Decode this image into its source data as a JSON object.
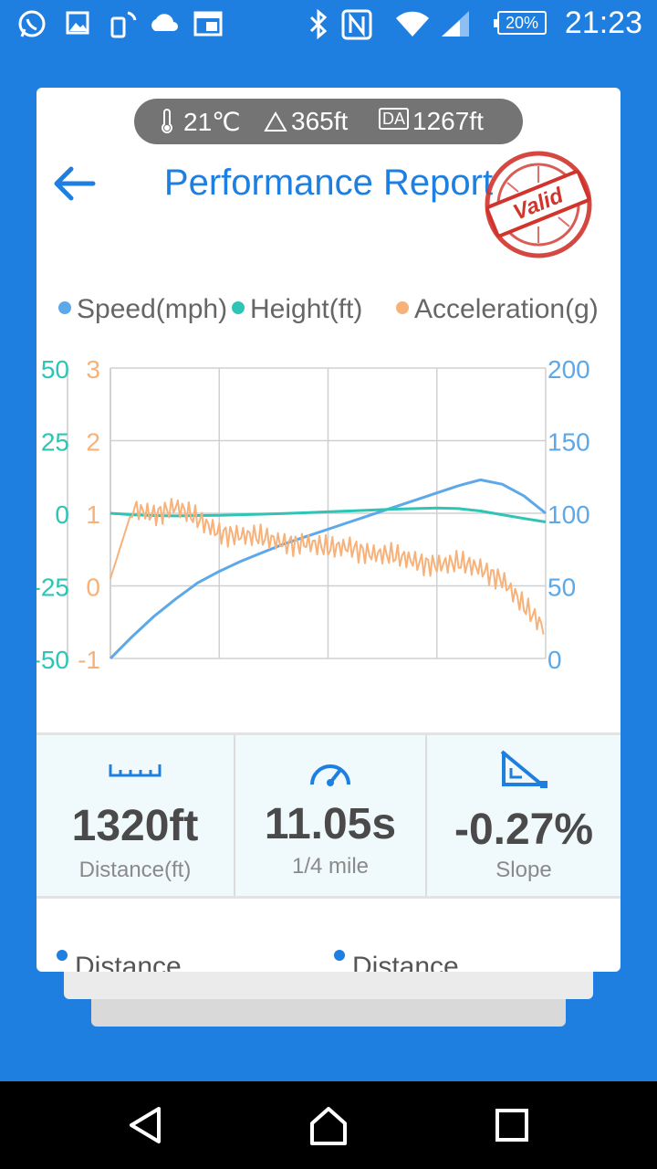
{
  "status_bar": {
    "battery": "20%",
    "time": "21:23",
    "icons": [
      "whatsapp-icon",
      "image-icon",
      "phone-rotate-icon",
      "cloud-icon",
      "calendar-icon",
      "bluetooth-icon",
      "nfc-icon",
      "wifi-icon",
      "signal-icon"
    ]
  },
  "conditions": {
    "temperature": "21℃",
    "altitude": "365ft",
    "density_altitude_badge": "DA",
    "density_altitude": "1267ft"
  },
  "header": {
    "title": "Performance Report",
    "stamp_text": "Valid"
  },
  "legend": {
    "speed": "Speed(mph)",
    "height": "Height(ft)",
    "acceleration": "Acceleration(g)"
  },
  "colors": {
    "brand": "#1e7fe0",
    "speed": "#5ca8e8",
    "height": "#2ec4b6",
    "acceleration": "#f7b27a",
    "stamp": "#d0342c"
  },
  "chart_data": {
    "type": "line",
    "grid": true,
    "legend_position": "top",
    "axes": {
      "height_left": {
        "ticks": [
          "50",
          "25",
          "0",
          "-25",
          "-50"
        ],
        "range": [
          -50,
          50
        ]
      },
      "acceleration_left": {
        "ticks": [
          "3",
          "2",
          "1",
          "0",
          "-1"
        ],
        "range": [
          -1,
          3
        ]
      },
      "speed_right": {
        "ticks": [
          "200",
          "150",
          "100",
          "50",
          "0"
        ],
        "range": [
          0,
          200
        ]
      }
    },
    "x": [
      0,
      0.05,
      0.1,
      0.15,
      0.2,
      0.25,
      0.3,
      0.35,
      0.4,
      0.45,
      0.5,
      0.55,
      0.6,
      0.65,
      0.7,
      0.75,
      0.8,
      0.85,
      0.9,
      0.95,
      1.0
    ],
    "series": [
      {
        "name": "Speed(mph)",
        "axis": "speed_right",
        "values": [
          0,
          15,
          29,
          41,
          52,
          60,
          67,
          73,
          79,
          84,
          89,
          94,
          99,
          104,
          109,
          114,
          119,
          123,
          120,
          112,
          100
        ]
      },
      {
        "name": "Height(ft)",
        "axis": "height_left",
        "values": [
          0,
          -0.5,
          -0.8,
          -0.9,
          -0.8,
          -0.7,
          -0.5,
          -0.3,
          -0.1,
          0.2,
          0.5,
          0.8,
          1.1,
          1.4,
          1.6,
          1.8,
          1.6,
          0.8,
          -0.5,
          -1.8,
          -3.0
        ]
      },
      {
        "name": "Acceleration(g)",
        "axis": "acceleration_left",
        "values": [
          0.1,
          1.05,
          1.0,
          1.1,
          0.9,
          0.75,
          0.7,
          0.65,
          0.6,
          0.6,
          0.5,
          0.55,
          0.45,
          0.4,
          0.35,
          0.3,
          0.3,
          0.25,
          0.1,
          -0.3,
          -0.6
        ]
      }
    ]
  },
  "stats": [
    {
      "value": "1320ft",
      "label": "Distance(ft)",
      "icon": "ruler-icon"
    },
    {
      "value": "11.05s",
      "label": "1/4 mile",
      "icon": "speedometer-icon"
    },
    {
      "value": "-0.27%",
      "label": "Slope",
      "icon": "slope-icon"
    }
  ],
  "bottom_labels": [
    "Distance",
    "Distance"
  ],
  "nav": [
    "back-nav-icon",
    "home-nav-icon",
    "recents-nav-icon"
  ]
}
